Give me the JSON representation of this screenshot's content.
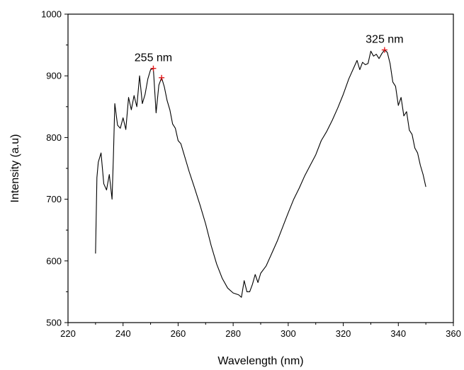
{
  "chart_data": {
    "type": "line",
    "title": "",
    "xlabel": "Wavelength (nm)",
    "ylabel": "Intensity (a.u)",
    "xlim": [
      220,
      360
    ],
    "ylim": [
      500,
      1000
    ],
    "xticks": [
      220,
      240,
      260,
      280,
      300,
      320,
      340,
      360
    ],
    "yticks": [
      500,
      600,
      700,
      800,
      900,
      1000
    ],
    "grid": false,
    "legend": "none",
    "line_color": "#000000",
    "marker_color": "#e31a1c",
    "series": [
      {
        "x": [
          230,
          230.5,
          231,
          232,
          233,
          234,
          235,
          236,
          236.5,
          237,
          238,
          239,
          240,
          241,
          242,
          243,
          244,
          245,
          246,
          247,
          248,
          249,
          250,
          251,
          252,
          253,
          254,
          255,
          256,
          257,
          258,
          259,
          260,
          261,
          262,
          263,
          264,
          266,
          268,
          270,
          272,
          274,
          276,
          278,
          280,
          282,
          283,
          284,
          285,
          286,
          287,
          288,
          289,
          290,
          292,
          294,
          296,
          298,
          300,
          302,
          304,
          306,
          308,
          310,
          312,
          314,
          316,
          318,
          320,
          322,
          324,
          325,
          326,
          327,
          328,
          329,
          330,
          331,
          332,
          333,
          334,
          335,
          336,
          337,
          338,
          339,
          340,
          341,
          342,
          343,
          344,
          345,
          346,
          347,
          348,
          349,
          350
        ],
        "y": [
          612,
          735,
          760,
          775,
          725,
          715,
          740,
          700,
          770,
          855,
          820,
          815,
          832,
          813,
          865,
          845,
          868,
          850,
          900,
          855,
          870,
          895,
          910,
          912,
          840,
          885,
          897,
          882,
          860,
          845,
          822,
          815,
          795,
          790,
          775,
          760,
          745,
          718,
          690,
          660,
          625,
          595,
          572,
          556,
          548,
          545,
          541,
          568,
          550,
          550,
          562,
          578,
          565,
          580,
          592,
          612,
          632,
          655,
          678,
          700,
          718,
          738,
          755,
          772,
          795,
          810,
          828,
          848,
          870,
          895,
          915,
          925,
          910,
          922,
          918,
          920,
          940,
          932,
          935,
          928,
          936,
          942,
          938,
          920,
          890,
          883,
          852,
          865,
          835,
          842,
          812,
          805,
          783,
          775,
          755,
          740,
          720
        ]
      }
    ],
    "peaks": [
      {
        "x": 251,
        "y": 912
      },
      {
        "x": 254,
        "y": 897
      },
      {
        "x": 335,
        "y": 942
      }
    ],
    "annotations": [
      {
        "text": "255 nm",
        "x": 251,
        "y": 912
      },
      {
        "text": "325 nm",
        "x": 335,
        "y": 942
      }
    ]
  }
}
